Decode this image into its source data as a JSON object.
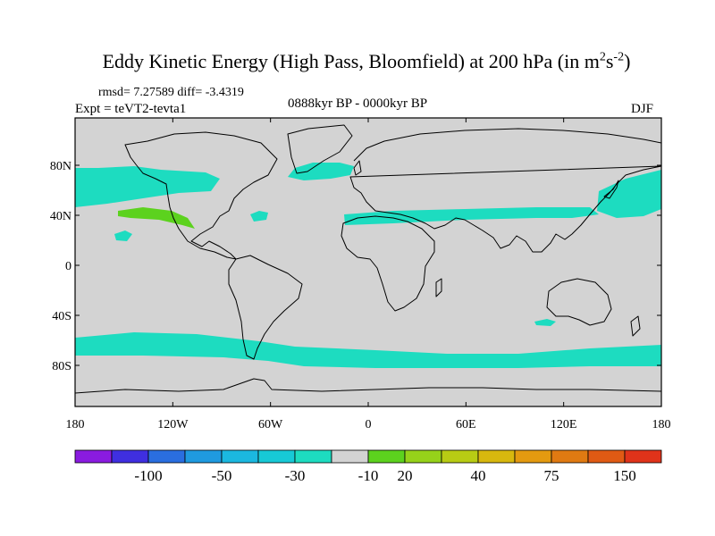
{
  "title": {
    "main": "Eddy Kinetic Energy (High Pass, Bloomfield) at 200 hPa (in m",
    "sup1": "2",
    "mid": "s",
    "sup2": "-2",
    "close": ")"
  },
  "stats": "rmsd= 7.27589 diff= -3.4319",
  "experiment": "Expt = teVT2-tevta1",
  "period": "0888kyr BP - 0000kyr BP",
  "season": "DJF",
  "map": {
    "background_color": "#d3d3d3",
    "lat_ticks": [
      {
        "value": 80,
        "label": "80N"
      },
      {
        "value": 40,
        "label": "40N"
      },
      {
        "value": 0,
        "label": "0"
      },
      {
        "value": -40,
        "label": "40S"
      },
      {
        "value": -80,
        "label": "80S"
      }
    ],
    "lon_ticks": [
      {
        "value": -180,
        "label": "180"
      },
      {
        "value": -120,
        "label": "120W"
      },
      {
        "value": -60,
        "label": "60W"
      },
      {
        "value": 0,
        "label": "0"
      },
      {
        "value": 60,
        "label": "60E"
      },
      {
        "value": 120,
        "label": "120E"
      },
      {
        "value": 180,
        "label": "180"
      }
    ]
  },
  "colorbar": {
    "colors": [
      "#8a1be0",
      "#3f2fe0",
      "#2a6ee0",
      "#1f9ae0",
      "#1bb8e0",
      "#17c9d6",
      "#1ddcc0",
      "#d3d3d3",
      "#5cd21e",
      "#96d21a",
      "#b8cc14",
      "#d8b80e",
      "#e49a10",
      "#e07a12",
      "#e05a14",
      "#e0331a"
    ],
    "labels": [
      {
        "boundary": 2,
        "text": "-100"
      },
      {
        "boundary": 4,
        "text": "-50"
      },
      {
        "boundary": 6,
        "text": "-30"
      },
      {
        "boundary": 8,
        "text": "-10"
      },
      {
        "boundary": 9,
        "text": "20"
      },
      {
        "boundary": 11,
        "text": "40"
      },
      {
        "boundary": 13,
        "text": "75"
      },
      {
        "boundary": 15,
        "text": "150"
      }
    ]
  }
}
